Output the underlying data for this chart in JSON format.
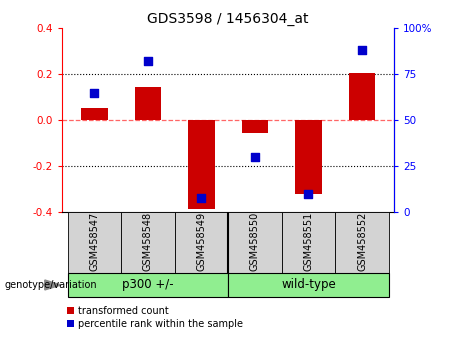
{
  "title": "GDS3598 / 1456304_at",
  "samples": [
    "GSM458547",
    "GSM458548",
    "GSM458549",
    "GSM458550",
    "GSM458551",
    "GSM458552"
  ],
  "bar_values": [
    0.055,
    0.145,
    -0.385,
    -0.055,
    -0.32,
    0.205
  ],
  "percentile_values": [
    65,
    82,
    8,
    30,
    10,
    88
  ],
  "group1_label": "p300 +/-",
  "group1_indices": [
    0,
    1,
    2
  ],
  "group2_label": "wild-type",
  "group2_indices": [
    3,
    4,
    5
  ],
  "group_color": "#90EE90",
  "sample_box_color": "#d3d3d3",
  "ylim_left": [
    -0.4,
    0.4
  ],
  "ylim_right": [
    0,
    100
  ],
  "yticks_left": [
    -0.4,
    -0.2,
    0.0,
    0.2,
    0.4
  ],
  "yticks_right": [
    0,
    25,
    50,
    75,
    100
  ],
  "bar_color": "#cc0000",
  "dot_color": "#0000cc",
  "zero_line_color": "#ff6666",
  "grid_color": "#000000",
  "legend_items": [
    "transformed count",
    "percentile rank within the sample"
  ],
  "genotype_label": "genotype/variation",
  "bar_width": 0.5
}
